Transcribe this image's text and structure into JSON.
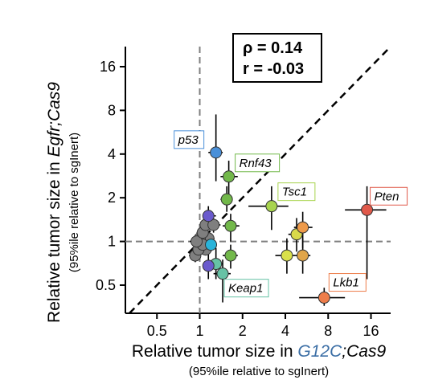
{
  "chart_data": {
    "type": "scatter",
    "xscale": "log2",
    "yscale": "log2",
    "xlim": [
      0.3,
      22
    ],
    "ylim": [
      0.32,
      22
    ],
    "xticks": [
      0.5,
      1,
      2,
      4,
      8,
      16
    ],
    "xtick_labels": [
      "0.5",
      "1",
      "2",
      "4",
      "8",
      "16"
    ],
    "yticks": [
      0.5,
      1,
      2,
      4,
      8,
      16
    ],
    "ytick_labels": [
      "0.5",
      "1",
      "2",
      "4",
      "8",
      "16"
    ],
    "xlabel_parts": [
      "Relative tumor size in ",
      "G12C",
      ";Cas9"
    ],
    "xlabel_sub": "(95%ile relative to sgInert)",
    "ylabel_parts": [
      "Relative tumor size in ",
      "Egfr;Cas9"
    ],
    "ylabel_sub": "(95%ile relative to sgInert)",
    "stats": [
      "ρ = 0.14",
      "r = -0.03"
    ],
    "reference_lines": {
      "x": 1,
      "y": 1,
      "diagonal": "y = x"
    },
    "grid": false,
    "colors": {
      "highlight": "#3b6ea5",
      "grey": "#7f7f7f"
    },
    "points": [
      {
        "gene": "p53",
        "x": 1.3,
        "y": 4.1,
        "xerr": [
          1.15,
          1.45
        ],
        "yerr": [
          2.6,
          7.5
        ],
        "color": "#4a90d9"
      },
      {
        "gene": "Rnf43",
        "x": 1.6,
        "y": 2.8,
        "xerr": [
          1.4,
          1.85
        ],
        "yerr": [
          2.0,
          3.6
        ],
        "color": "#72b84a"
      },
      {
        "gene": "",
        "x": 1.55,
        "y": 1.95,
        "xerr": [
          1.4,
          1.7
        ],
        "yerr": [
          1.6,
          2.4
        ],
        "color": "#72b84a"
      },
      {
        "gene": "Tsc1",
        "x": 3.2,
        "y": 1.75,
        "xerr": [
          2.2,
          4.2
        ],
        "yerr": [
          1.2,
          2.4
        ],
        "color": "#a8d44e"
      },
      {
        "gene": "Pten",
        "x": 15,
        "y": 1.65,
        "xerr": [
          10.5,
          20.5
        ],
        "yerr": [
          0.55,
          2.4
        ],
        "color": "#e0594a"
      },
      {
        "gene": "Lkb1",
        "x": 7.5,
        "y": 0.41,
        "xerr": [
          5.0,
          10.5
        ],
        "yerr": [
          0.36,
          0.48
        ],
        "color": "#ee7d4a"
      },
      {
        "gene": "Keap1",
        "x": 1.45,
        "y": 0.6,
        "xerr": [
          1.25,
          1.65
        ],
        "yerr": [
          0.38,
          0.75
        ],
        "color": "#66c2a5"
      },
      {
        "gene": "",
        "x": 1.65,
        "y": 1.28,
        "xerr": [
          1.45,
          1.9
        ],
        "yerr": [
          1.0,
          1.55
        ],
        "color": "#72b84a"
      },
      {
        "gene": "",
        "x": 1.65,
        "y": 0.8,
        "xerr": [
          1.45,
          1.85
        ],
        "yerr": [
          0.65,
          0.95
        ],
        "color": "#72b84a"
      },
      {
        "gene": "",
        "x": 5.3,
        "y": 1.25,
        "xerr": [
          4.6,
          6.2
        ],
        "yerr": [
          0.9,
          1.6
        ],
        "color": "#ee9a4a"
      },
      {
        "gene": "",
        "x": 4.8,
        "y": 1.12,
        "xerr": [
          4.2,
          5.3
        ],
        "yerr": [
          0.85,
          1.45
        ],
        "color": "#d9d94a"
      },
      {
        "gene": "",
        "x": 5.3,
        "y": 0.8,
        "xerr": [
          4.7,
          6.0
        ],
        "yerr": [
          0.6,
          1.05
        ],
        "color": "#e0a54a"
      },
      {
        "gene": "",
        "x": 4.1,
        "y": 0.8,
        "xerr": [
          3.4,
          4.7
        ],
        "yerr": [
          0.6,
          1.05
        ],
        "color": "#d9e04a"
      },
      {
        "gene": "",
        "x": 1.15,
        "y": 1.5,
        "xerr": [
          1.05,
          1.3
        ],
        "yerr": [
          1.2,
          1.75
        ],
        "color": "#6a5acd"
      },
      {
        "gene": "",
        "x": 1.15,
        "y": 0.68,
        "xerr": [
          1.05,
          1.3
        ],
        "yerr": [
          0.55,
          0.85
        ],
        "color": "#6a5acd"
      },
      {
        "gene": "",
        "x": 1.3,
        "y": 0.7,
        "xerr": [
          1.15,
          1.45
        ],
        "yerr": [
          0.55,
          0.9
        ],
        "color": "#66c2a5"
      },
      {
        "gene": "",
        "x": 1.2,
        "y": 0.95,
        "xerr": [
          1.08,
          1.32
        ],
        "yerr": [
          0.85,
          1.05
        ],
        "color": "#29b3d9"
      },
      {
        "gene": "",
        "x": 1.25,
        "y": 1.3,
        "xerr": [
          1.12,
          1.4
        ],
        "yerr": [
          1.15,
          1.45
        ],
        "color": "#7f7f7f"
      },
      {
        "gene": "",
        "x": 1.1,
        "y": 1.3,
        "xerr": [
          1.0,
          1.22
        ],
        "yerr": [
          1.15,
          1.45
        ],
        "color": "#7f7f7f"
      },
      {
        "gene": "",
        "x": 1.05,
        "y": 1.15,
        "xerr": [
          0.95,
          1.15
        ],
        "yerr": [
          1.02,
          1.28
        ],
        "color": "#7f7f7f"
      },
      {
        "gene": "",
        "x": 0.95,
        "y": 1.0,
        "xerr": [
          0.85,
          1.05
        ],
        "yerr": [
          0.9,
          1.1
        ],
        "color": "#7f7f7f"
      },
      {
        "gene": "",
        "x": 1.05,
        "y": 0.95,
        "xerr": [
          0.95,
          1.15
        ],
        "yerr": [
          0.86,
          1.05
        ],
        "color": "#7f7f7f"
      },
      {
        "gene": "",
        "x": 0.98,
        "y": 0.88,
        "xerr": [
          0.88,
          1.08
        ],
        "yerr": [
          0.8,
          0.97
        ],
        "color": "#7f7f7f"
      },
      {
        "gene": "",
        "x": 1.1,
        "y": 0.88,
        "xerr": [
          1.0,
          1.2
        ],
        "yerr": [
          0.8,
          0.97
        ],
        "color": "#7f7f7f"
      },
      {
        "gene": "",
        "x": 0.93,
        "y": 0.8,
        "xerr": [
          0.84,
          1.02
        ],
        "yerr": [
          0.72,
          0.88
        ],
        "color": "#7f7f7f"
      },
      {
        "gene": "",
        "x": 1.0,
        "y": 1.05,
        "xerr": [
          0.9,
          1.1
        ],
        "yerr": [
          0.95,
          1.15
        ],
        "color": "#7f7f7f"
      },
      {
        "gene": "",
        "x": 1.15,
        "y": 1.05,
        "xerr": [
          1.05,
          1.27
        ],
        "yerr": [
          0.95,
          1.15
        ],
        "color": "#7f7f7f"
      }
    ],
    "labels": [
      {
        "gene": "p53",
        "border": "#4a90d9"
      },
      {
        "gene": "Rnf43",
        "border": "#72b84a"
      },
      {
        "gene": "Tsc1",
        "border": "#a8d44e"
      },
      {
        "gene": "Pten",
        "border": "#e0594a"
      },
      {
        "gene": "Lkb1",
        "border": "#ee7d4a"
      },
      {
        "gene": "Keap1",
        "border": "#66c2a5"
      }
    ]
  }
}
